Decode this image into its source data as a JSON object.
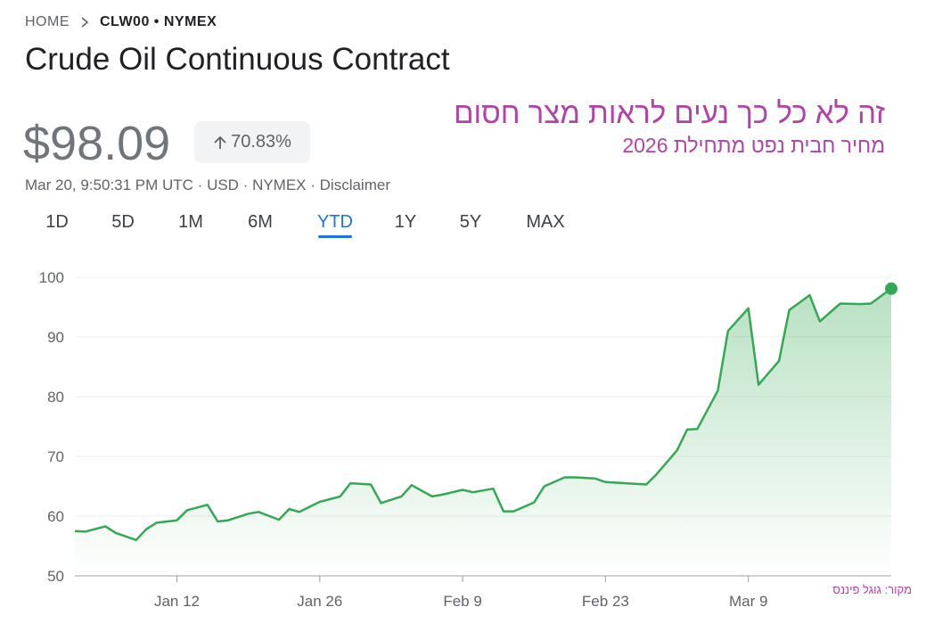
{
  "breadcrumb": {
    "home": "HOME",
    "ticker": "CLW00 • NYMEX"
  },
  "title": "Crude Oil Continuous Contract",
  "price": "$98.09",
  "change": "70.83%",
  "meta": {
    "timestamp": "Mar 20, 9:50:31 PM UTC · USD · NYMEX · ",
    "disclaimer": "Disclaimer"
  },
  "annotation": {
    "headline": "זה לא כל כך נעים לראות מצר חסום",
    "subheadline": "מחיר חבית נפט מתחילת 2026",
    "source": "מקור: גוגל פיננס"
  },
  "tabs": [
    {
      "label": "1D",
      "active": false
    },
    {
      "label": "5D",
      "active": false
    },
    {
      "label": "1M",
      "active": false
    },
    {
      "label": "6M",
      "active": false
    },
    {
      "label": "YTD",
      "active": true
    },
    {
      "label": "1Y",
      "active": false
    },
    {
      "label": "5Y",
      "active": false
    },
    {
      "label": "MAX",
      "active": false
    }
  ],
  "colors": {
    "line": "#34a853",
    "accent": "#1a73e8",
    "annotation": "#b042a8"
  },
  "chart_data": {
    "type": "area",
    "xlim": [
      "2026-01-02",
      "2026-03-20"
    ],
    "ylim": [
      50,
      100
    ],
    "yticks": [
      50,
      60,
      70,
      80,
      90,
      100
    ],
    "xticks": [
      {
        "label": "Jan 12",
        "date": "2026-01-12"
      },
      {
        "label": "Jan 26",
        "date": "2026-01-26"
      },
      {
        "label": "Feb 9",
        "date": "2026-02-09"
      },
      {
        "label": "Feb 23",
        "date": "2026-02-23"
      },
      {
        "label": "Mar 9",
        "date": "2026-03-09"
      }
    ],
    "grid": true,
    "series": [
      {
        "points": [
          [
            "2026-01-02",
            57.5
          ],
          [
            "2026-01-03",
            57.4
          ],
          [
            "2026-01-05",
            58.3
          ],
          [
            "2026-01-06",
            57.2
          ],
          [
            "2026-01-08",
            56.0
          ],
          [
            "2026-01-09",
            57.8
          ],
          [
            "2026-01-10",
            58.9
          ],
          [
            "2026-01-12",
            59.3
          ],
          [
            "2026-01-13",
            61.0
          ],
          [
            "2026-01-15",
            61.9
          ],
          [
            "2026-01-16",
            59.1
          ],
          [
            "2026-01-17",
            59.3
          ],
          [
            "2026-01-19",
            60.4
          ],
          [
            "2026-01-20",
            60.7
          ],
          [
            "2026-01-22",
            59.4
          ],
          [
            "2026-01-23",
            61.2
          ],
          [
            "2026-01-24",
            60.7
          ],
          [
            "2026-01-26",
            62.4
          ],
          [
            "2026-01-28",
            63.3
          ],
          [
            "2026-01-29",
            65.5
          ],
          [
            "2026-01-31",
            65.3
          ],
          [
            "2026-02-01",
            62.2
          ],
          [
            "2026-02-03",
            63.3
          ],
          [
            "2026-02-04",
            65.2
          ],
          [
            "2026-02-06",
            63.3
          ],
          [
            "2026-02-07",
            63.6
          ],
          [
            "2026-02-09",
            64.4
          ],
          [
            "2026-02-10",
            64.0
          ],
          [
            "2026-02-12",
            64.6
          ],
          [
            "2026-02-13",
            60.8
          ],
          [
            "2026-02-14",
            60.8
          ],
          [
            "2026-02-16",
            62.3
          ],
          [
            "2026-02-17",
            65.0
          ],
          [
            "2026-02-19",
            66.5
          ],
          [
            "2026-02-20",
            66.5
          ],
          [
            "2026-02-22",
            66.3
          ],
          [
            "2026-02-23",
            65.7
          ],
          [
            "2026-02-25",
            65.5
          ],
          [
            "2026-02-27",
            65.3
          ],
          [
            "2026-02-28",
            67.0
          ],
          [
            "2026-03-02",
            71.0
          ],
          [
            "2026-03-03",
            74.5
          ],
          [
            "2026-03-04",
            74.6
          ],
          [
            "2026-03-06",
            81.0
          ],
          [
            "2026-03-07",
            91.0
          ],
          [
            "2026-03-09",
            94.8
          ],
          [
            "2026-03-10",
            82.0
          ],
          [
            "2026-03-12",
            86.0
          ],
          [
            "2026-03-13",
            94.5
          ],
          [
            "2026-03-15",
            97.0
          ],
          [
            "2026-03-16",
            92.6
          ],
          [
            "2026-03-18",
            95.6
          ],
          [
            "2026-03-20",
            95.5
          ],
          [
            "2026-03-21",
            95.6
          ],
          [
            "2026-03-23",
            98.09
          ]
        ]
      }
    ]
  }
}
